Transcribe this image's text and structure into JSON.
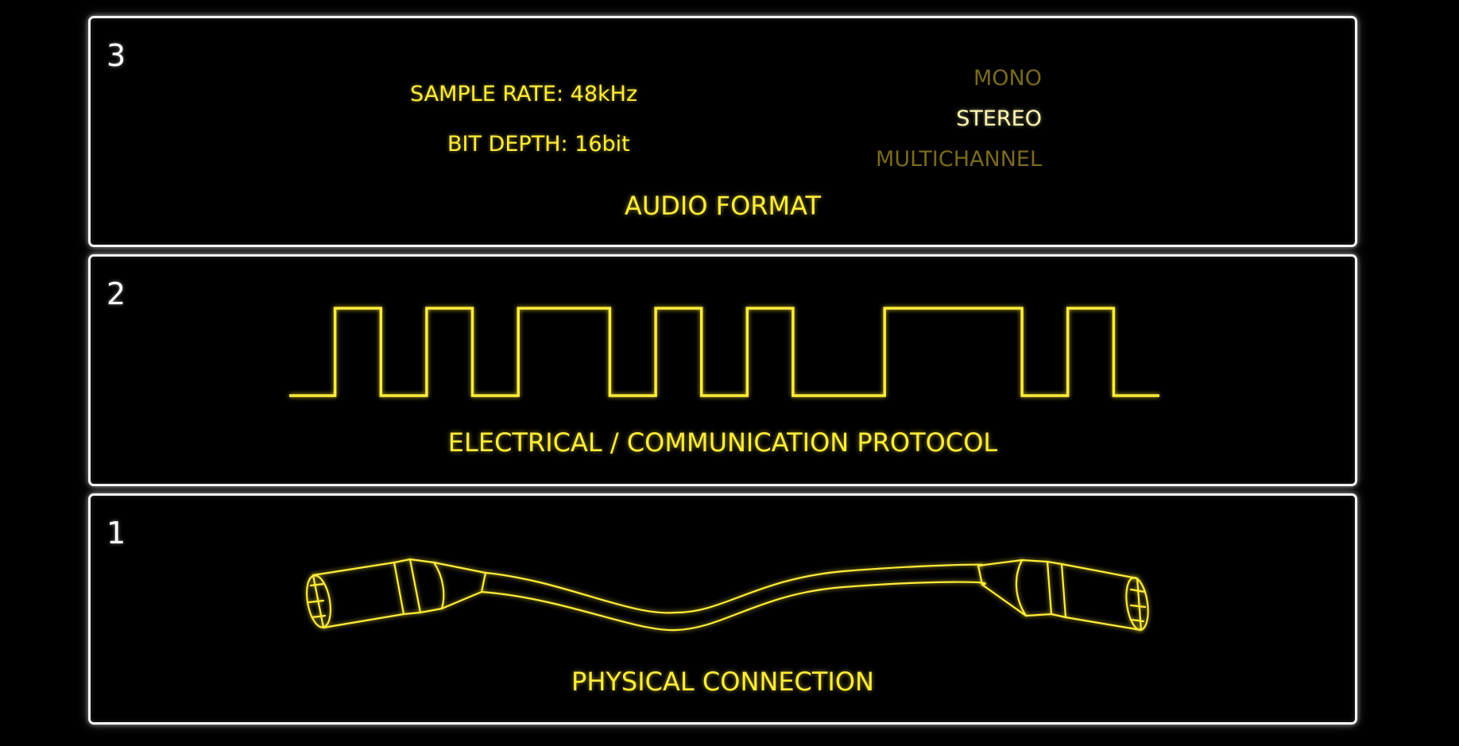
{
  "layers": {
    "audio_format": {
      "number": "3",
      "caption": "AUDIO FORMAT",
      "sample_rate": "SAMPLE RATE: 48kHz",
      "bit_depth": "BIT DEPTH: 16bit",
      "channel_options": [
        {
          "label": "MONO",
          "selected": false
        },
        {
          "label": "STEREO",
          "selected": true
        },
        {
          "label": "MULTICHANNEL",
          "selected": false
        }
      ]
    },
    "electrical_protocol": {
      "number": "2",
      "caption": "ELECTRICAL / COMMUNICATION PROTOCOL",
      "bit_sequence": [
        0,
        1,
        0,
        1,
        0,
        1,
        1,
        0,
        1,
        0,
        1,
        0,
        0,
        1,
        1,
        1,
        0,
        1,
        0
      ]
    },
    "physical_connection": {
      "number": "1",
      "caption": "PHYSICAL CONNECTION",
      "cable_icon": "xlr-cable-icon"
    }
  },
  "colors": {
    "accent": "#ffec3a",
    "border": "#f4f4f4",
    "dim": "#7a6a1c",
    "background": "#000000"
  }
}
